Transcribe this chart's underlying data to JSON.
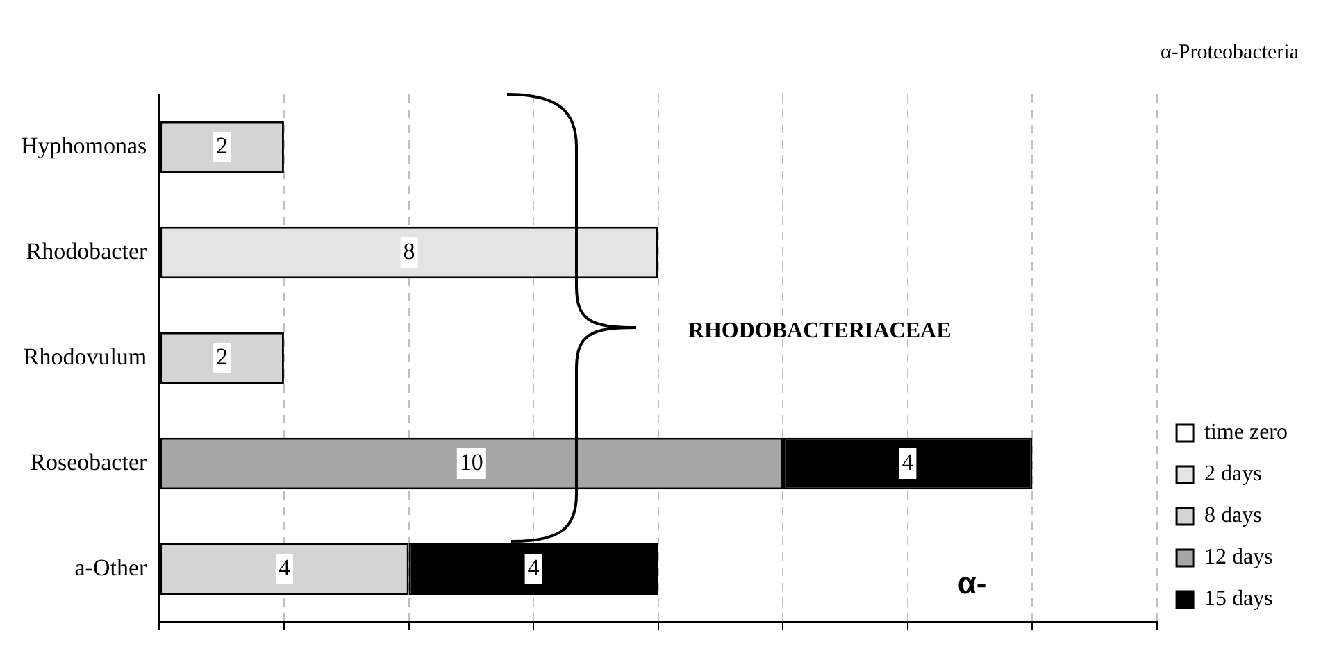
{
  "chart_data": {
    "type": "bar",
    "orientation": "horizontal",
    "stacked": true,
    "categories": [
      "Hyphomonas",
      "Rhodobacter",
      "Rhodovulum",
      "Roseobacter",
      "a-Other"
    ],
    "series": [
      {
        "name": "time zero",
        "color": "#ffffff",
        "values": [
          null,
          null,
          null,
          null,
          null
        ]
      },
      {
        "name": "2 days",
        "color": "#e4e4e4",
        "values": [
          null,
          8,
          null,
          null,
          null
        ]
      },
      {
        "name": "8 days",
        "color": "#d4d4d4",
        "values": [
          2,
          null,
          2,
          null,
          4
        ]
      },
      {
        "name": "12 days",
        "color": "#a6a6a6",
        "values": [
          null,
          null,
          null,
          10,
          null
        ]
      },
      {
        "name": "15 days",
        "color": "#000000",
        "values": [
          null,
          null,
          null,
          4,
          4
        ]
      }
    ],
    "xlim": [
      0,
      16
    ],
    "xticks": [
      {
        "value": 0,
        "label": null
      },
      {
        "value": 2,
        "label": null
      },
      {
        "value": 4,
        "label": null
      },
      {
        "value": 6,
        "label": null
      },
      {
        "value": 8,
        "label": null
      },
      {
        "value": 10,
        "label": null
      },
      {
        "value": 12,
        "label": null
      },
      {
        "value": 14,
        "label": null
      },
      {
        "value": 16,
        "label": null
      }
    ],
    "tick_labels": "y",
    "grid": "x",
    "legend": "bottom right",
    "data_labels": true,
    "annotations": [
      "α-Proteobacteria",
      "RHODOBACTERIACEAE",
      "α-"
    ]
  }
}
